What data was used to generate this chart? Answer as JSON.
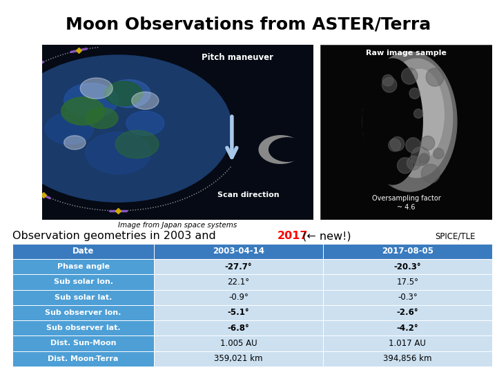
{
  "title": "Moon Observations from ASTER/Terra",
  "title_fontsize": 18,
  "left_image_label": "Pitch maneuver",
  "left_image_sublabel": "Image from Japan space systems",
  "right_image_label": "Raw image sample",
  "right_image_sublabel": "Oversampling factor\n~ 4.6",
  "scan_direction_label": "Scan direction",
  "obs_text_black1": "Observation geometries in 2003 and ",
  "obs_text_red": "2017",
  "obs_text_black2": " (← new!)",
  "spice_label": "SPICE/TLE",
  "header_bg": "#3a7bbf",
  "header_text_color": "#ffffff",
  "row_label_bg": "#4d9fd6",
  "row_label_text": "#ffffff",
  "row_data_bg": "#cce0f0",
  "row_data_text": "#000000",
  "bold_value_rows": [
    0,
    3,
    4
  ],
  "table_headers": [
    "Date",
    "2003-04-14",
    "2017-08-05"
  ],
  "table_rows": [
    [
      "Phase angle",
      "-27.7°",
      "-20.3°"
    ],
    [
      "Sub solar lon.",
      "22.1°",
      "17.5°"
    ],
    [
      "Sub solar lat.",
      "-0.9°",
      "-0.3°"
    ],
    [
      "Sub observer lon.",
      "-5.1°",
      "-2.6°"
    ],
    [
      "Sub observer lat.",
      "-6.8°",
      "-4.2°"
    ],
    [
      "Dist. Sun-Moon",
      "1.005 AU",
      "1.017 AU"
    ],
    [
      "Dist. Moon-Terra",
      "359,021 km",
      "394,856 km"
    ]
  ],
  "background_color": "#ffffff",
  "earth_color": "#1a3a6a",
  "earth_land": "#2d6e2d",
  "space_color": "#050a14",
  "moon_color": "#888888",
  "arrow_color": "#a8c8e8",
  "orbit_color": "#aaaaaa",
  "sat_body": "#ccaa00",
  "sat_panel": "#8855bb"
}
